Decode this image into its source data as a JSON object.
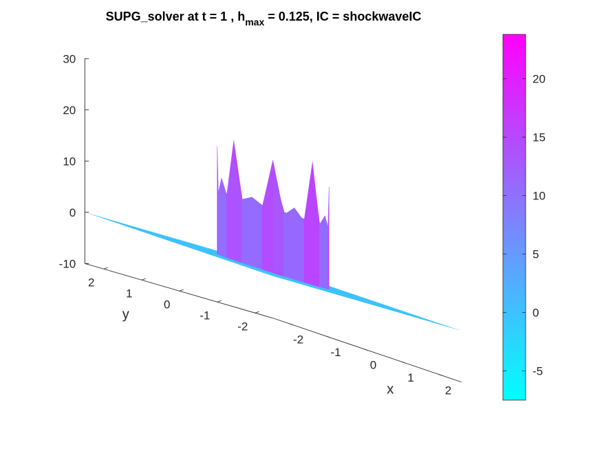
{
  "title": {
    "prefix": "SUPG_solver at t = 1 , h",
    "subscript": "max",
    "suffix": " = 0.125, IC = shockwaveIC"
  },
  "chart_data": {
    "type": "surface",
    "colormap": "cool",
    "xlabel": "x",
    "ylabel": "y",
    "zlabel": "",
    "xlim": [
      -2.5,
      2.5
    ],
    "ylim": [
      -2.5,
      2.5
    ],
    "zlim": [
      -10,
      30
    ],
    "x_ticks": [
      -2,
      -1,
      0,
      1,
      2
    ],
    "y_ticks": [
      -2,
      -1,
      0,
      1,
      2
    ],
    "z_ticks": [
      -10,
      0,
      10,
      20,
      30
    ],
    "x_tick_labels": [
      "-2",
      "-1",
      "0",
      "1",
      "2"
    ],
    "y_tick_labels": [
      "-2",
      "-1",
      "0",
      "1",
      "2"
    ],
    "z_tick_labels": [
      "-10",
      "0",
      "10",
      "20",
      "30"
    ],
    "background_value": 0,
    "ring_radius": 1.05,
    "interior_value": 9,
    "rim_peak_values": [
      24,
      14,
      22,
      13,
      20,
      12,
      21,
      15,
      23,
      13,
      19,
      12,
      22,
      14,
      20,
      13
    ],
    "colorbar": {
      "limits": [
        -7.5,
        23.8
      ],
      "ticks": [
        -5,
        0,
        5,
        10,
        15,
        20
      ],
      "tick_labels": [
        "-5",
        "0",
        "5",
        "10",
        "15",
        "20"
      ]
    },
    "colors": {
      "colormap_low": "#00ffff",
      "colormap_high": "#ff00ff",
      "tick_color": "#262626"
    }
  }
}
